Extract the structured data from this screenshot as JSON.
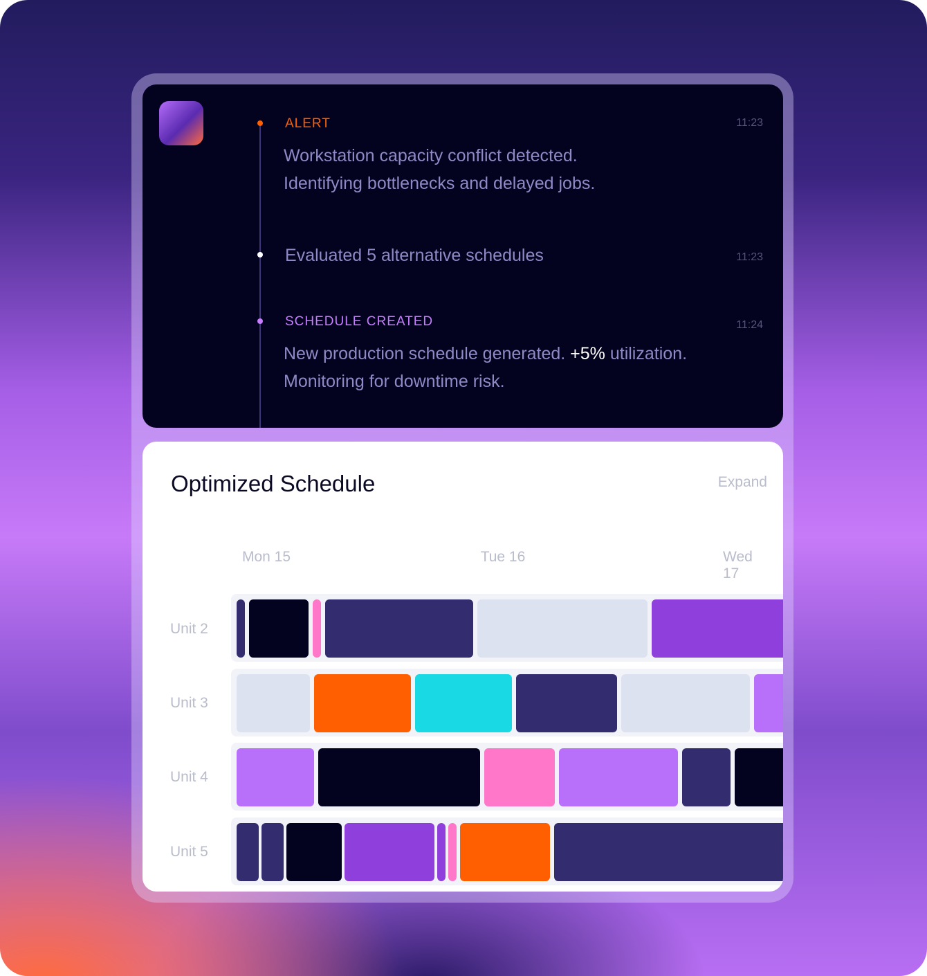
{
  "feed": {
    "events": [
      {
        "label": "ALERT",
        "time": "11:23",
        "lines": [
          [
            "Workstation capacity conflict detected."
          ],
          [
            "Identifying bottlenecks and delayed jobs."
          ]
        ]
      },
      {
        "time": "11:23",
        "lines": [
          [
            "Evaluated 5 alternative schedules"
          ]
        ]
      },
      {
        "label": "SCHEDULE CREATED",
        "time": "11:24",
        "lines": [
          [
            "New production schedule generated. ",
            "+5%",
            " utilization."
          ],
          [
            "Monitoring for downtime risk."
          ]
        ]
      }
    ]
  },
  "schedule": {
    "title": "Optimized Schedule",
    "action": "Expand",
    "days": [
      "Mon 15",
      "Tue 16",
      "Wed 17"
    ],
    "units": [
      "Unit 2",
      "Unit 3",
      "Unit 4",
      "Unit 5"
    ]
  }
}
